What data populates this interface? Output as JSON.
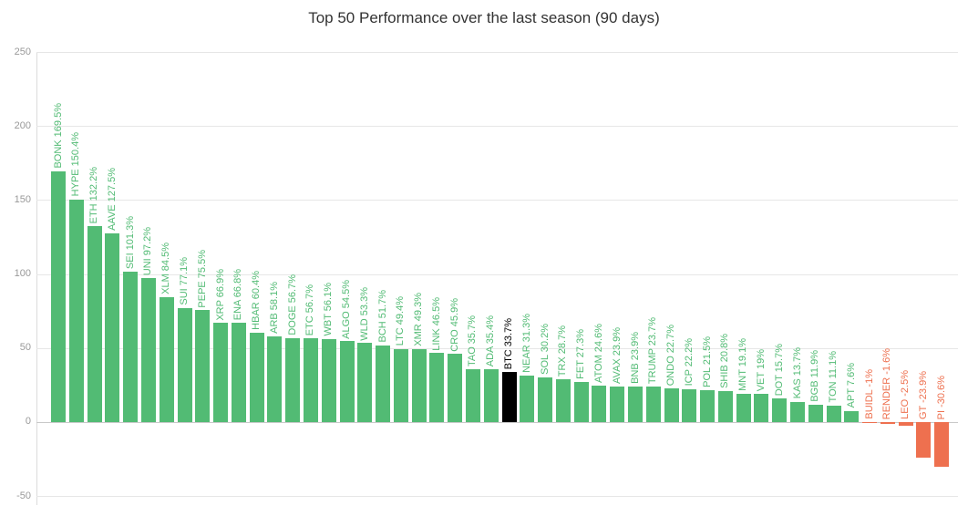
{
  "chart_data": {
    "type": "bar",
    "title": "Top 50 Performance over the last season (90 days)",
    "xlabel": "",
    "ylabel": "",
    "ylim": [
      -50,
      250
    ],
    "yticks": [
      250,
      200,
      150,
      100,
      50,
      0,
      -50
    ],
    "grid": true,
    "legend": false,
    "colors": {
      "positive": "#52bb74",
      "negative": "#ee704f",
      "highlight": "#000000",
      "grid": "#e6e6e6",
      "zero_line": "#c9c9c9",
      "tick_text": "#999999",
      "title_text": "#333333"
    },
    "bars": [
      {
        "name": "BONK",
        "value": 169.5,
        "label": "BONK 169.5%"
      },
      {
        "name": "HYPE",
        "value": 150.4,
        "label": "HYPE 150.4%"
      },
      {
        "name": "ETH",
        "value": 132.2,
        "label": "ETH 132.2%"
      },
      {
        "name": "AAVE",
        "value": 127.5,
        "label": "AAVE 127.5%"
      },
      {
        "name": "SEI",
        "value": 101.3,
        "label": "SEI 101.3%"
      },
      {
        "name": "UNI",
        "value": 97.2,
        "label": "UNI 97.2%"
      },
      {
        "name": "XLM",
        "value": 84.5,
        "label": "XLM 84.5%"
      },
      {
        "name": "SUI",
        "value": 77.1,
        "label": "SUI 77.1%"
      },
      {
        "name": "PEPE",
        "value": 75.5,
        "label": "PEPE 75.5%"
      },
      {
        "name": "XRP",
        "value": 66.9,
        "label": "XRP 66.9%"
      },
      {
        "name": "ENA",
        "value": 66.8,
        "label": "ENA 66.8%"
      },
      {
        "name": "HBAR",
        "value": 60.4,
        "label": "HBAR 60.4%"
      },
      {
        "name": "ARB",
        "value": 58.1,
        "label": "ARB 58.1%"
      },
      {
        "name": "DOGE",
        "value": 56.7,
        "label": "DOGE 56.7%"
      },
      {
        "name": "ETC",
        "value": 56.7,
        "label": "ETC 56.7%"
      },
      {
        "name": "WBT",
        "value": 56.1,
        "label": "WBT 56.1%"
      },
      {
        "name": "ALGO",
        "value": 54.5,
        "label": "ALGO 54.5%"
      },
      {
        "name": "WLD",
        "value": 53.3,
        "label": "WLD 53.3%"
      },
      {
        "name": "BCH",
        "value": 51.7,
        "label": "BCH 51.7%"
      },
      {
        "name": "LTC",
        "value": 49.4,
        "label": "LTC 49.4%"
      },
      {
        "name": "XMR",
        "value": 49.3,
        "label": "XMR 49.3%"
      },
      {
        "name": "LINK",
        "value": 46.5,
        "label": "LINK 46.5%"
      },
      {
        "name": "CRO",
        "value": 45.9,
        "label": "CRO 45.9%"
      },
      {
        "name": "TAO",
        "value": 35.7,
        "label": "TAO 35.7%"
      },
      {
        "name": "ADA",
        "value": 35.4,
        "label": "ADA 35.4%"
      },
      {
        "name": "BTC",
        "value": 33.7,
        "label": "BTC 33.7%",
        "highlight": true
      },
      {
        "name": "NEAR",
        "value": 31.3,
        "label": "NEAR 31.3%"
      },
      {
        "name": "SOL",
        "value": 30.2,
        "label": "SOL 30.2%"
      },
      {
        "name": "TRX",
        "value": 28.7,
        "label": "TRX 28.7%"
      },
      {
        "name": "FET",
        "value": 27.3,
        "label": "FET 27.3%"
      },
      {
        "name": "ATOM",
        "value": 24.6,
        "label": "ATOM 24.6%"
      },
      {
        "name": "AVAX",
        "value": 23.9,
        "label": "AVAX 23.9%"
      },
      {
        "name": "BNB",
        "value": 23.9,
        "label": "BNB 23.9%"
      },
      {
        "name": "TRUMP",
        "value": 23.7,
        "label": "TRUMP 23.7%"
      },
      {
        "name": "ONDO",
        "value": 22.7,
        "label": "ONDO 22.7%"
      },
      {
        "name": "ICP",
        "value": 22.2,
        "label": "ICP 22.2%"
      },
      {
        "name": "POL",
        "value": 21.5,
        "label": "POL 21.5%"
      },
      {
        "name": "SHIB",
        "value": 20.8,
        "label": "SHIB 20.8%"
      },
      {
        "name": "MNT",
        "value": 19.1,
        "label": "MNT 19.1%"
      },
      {
        "name": "VET",
        "value": 19,
        "label": "VET 19%"
      },
      {
        "name": "DOT",
        "value": 15.7,
        "label": "DOT 15.7%"
      },
      {
        "name": "KAS",
        "value": 13.7,
        "label": "KAS 13.7%"
      },
      {
        "name": "BGB",
        "value": 11.9,
        "label": "BGB 11.9%"
      },
      {
        "name": "TON",
        "value": 11.1,
        "label": "TON 11.1%"
      },
      {
        "name": "APT",
        "value": 7.6,
        "label": "APT 7.6%"
      },
      {
        "name": "BUIDL",
        "value": -1,
        "label": "BUIDL -1%"
      },
      {
        "name": "RENDER",
        "value": -1.6,
        "label": "RENDER -1.6%"
      },
      {
        "name": "LEO",
        "value": -2.5,
        "label": "LEO -2.5%"
      },
      {
        "name": "GT",
        "value": -23.9,
        "label": "GT -23.9%"
      },
      {
        "name": "PI",
        "value": -30.6,
        "label": "PI -30.6%"
      }
    ]
  }
}
